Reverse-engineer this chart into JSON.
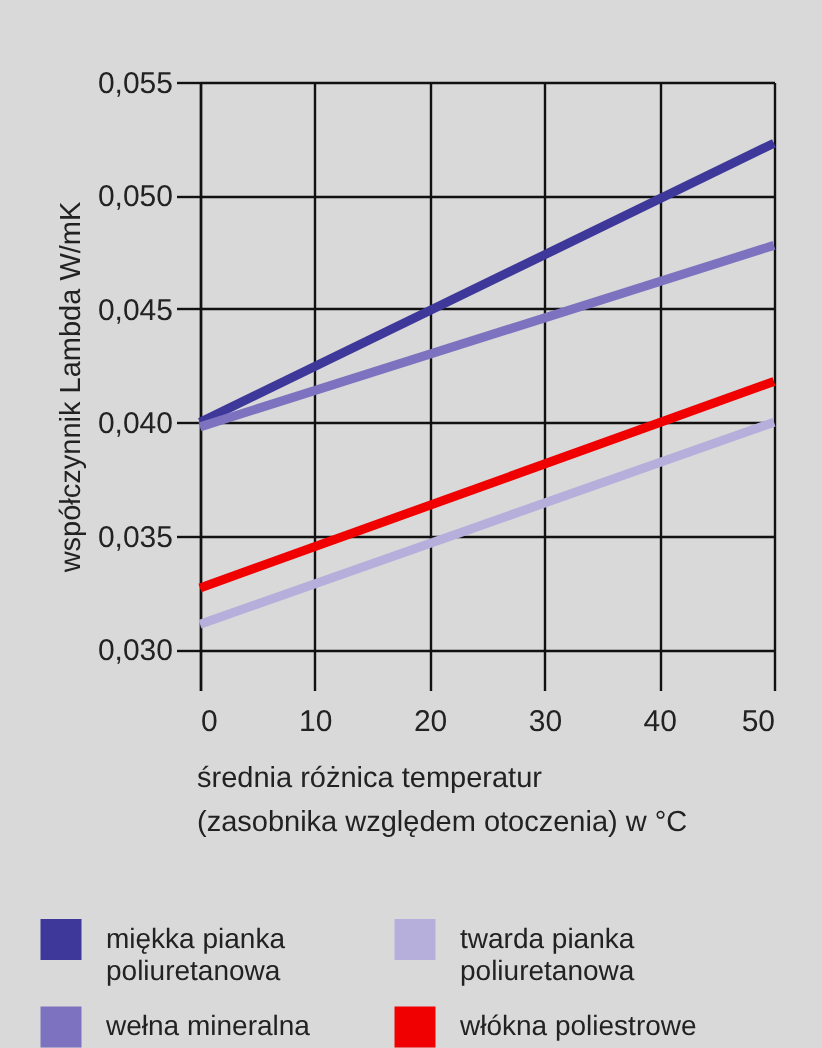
{
  "chart_data": {
    "type": "line",
    "xlabel": "średnia różnica temperatur\n(zasobnika względem otoczenia) w °C",
    "ylabel": "współczynnik Lambda W/mK",
    "x": [
      0,
      50
    ],
    "series": [
      {
        "name": "miękka pianka poliuretanowa",
        "color": "#3d3899",
        "values": [
          0.04,
          0.0523
        ]
      },
      {
        "name": "twarda pianka poliuretanowa",
        "color": "#b6afdc",
        "values": [
          0.0311,
          0.04
        ]
      },
      {
        "name": "wełna mineralna",
        "color": "#7c72bf",
        "values": [
          0.0398,
          0.0478
        ]
      },
      {
        "name": "włókna poliestrowe",
        "color": "#f00000",
        "values": [
          0.0327,
          0.0418
        ]
      }
    ],
    "xlim": [
      0,
      50
    ],
    "xticks": [
      0,
      10,
      20,
      30,
      40,
      50
    ],
    "ylim": [
      0.0282,
      0.055
    ],
    "yticks": [
      {
        "value": 0.03,
        "label": "0,030"
      },
      {
        "value": 0.035,
        "label": "0,035"
      },
      {
        "value": 0.04,
        "label": "0,040"
      },
      {
        "value": 0.045,
        "label": "0,045"
      },
      {
        "value": 0.05,
        "label": "0,050"
      },
      {
        "value": 0.055,
        "label": "0,055"
      }
    ],
    "grid": true,
    "legend": "bottom",
    "marker": "none",
    "line_style": "solid"
  }
}
